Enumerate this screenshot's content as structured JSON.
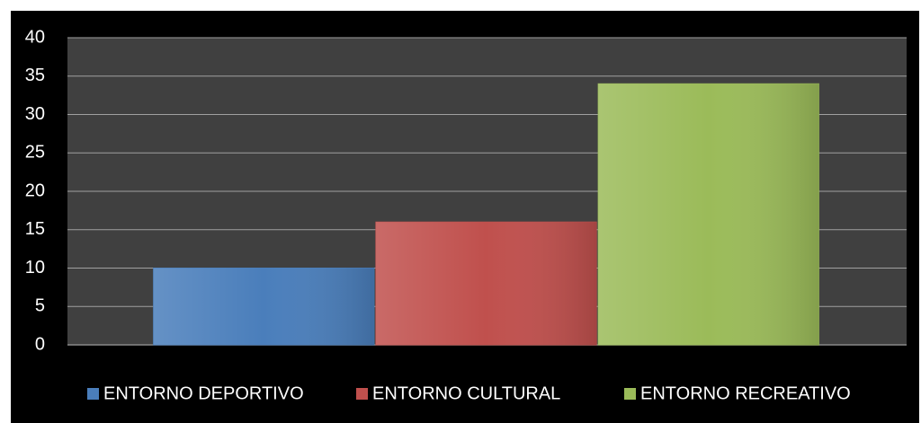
{
  "chart_data": {
    "type": "bar",
    "categories": [
      null
    ],
    "series": [
      {
        "name": "ENTORNO DEPORTIVO",
        "color": "#4a7ebb",
        "values": [
          10
        ]
      },
      {
        "name": "ENTORNO CULTURAL",
        "color": "#c0504d",
        "values": [
          16
        ]
      },
      {
        "name": "ENTORNO RECREATIVO",
        "color": "#9bbb59",
        "values": [
          34
        ]
      }
    ],
    "ylim": [
      0,
      40
    ],
    "yticks": [
      0,
      5,
      10,
      15,
      20,
      25,
      30,
      35,
      40
    ],
    "grid": true,
    "legend": "bottom"
  }
}
